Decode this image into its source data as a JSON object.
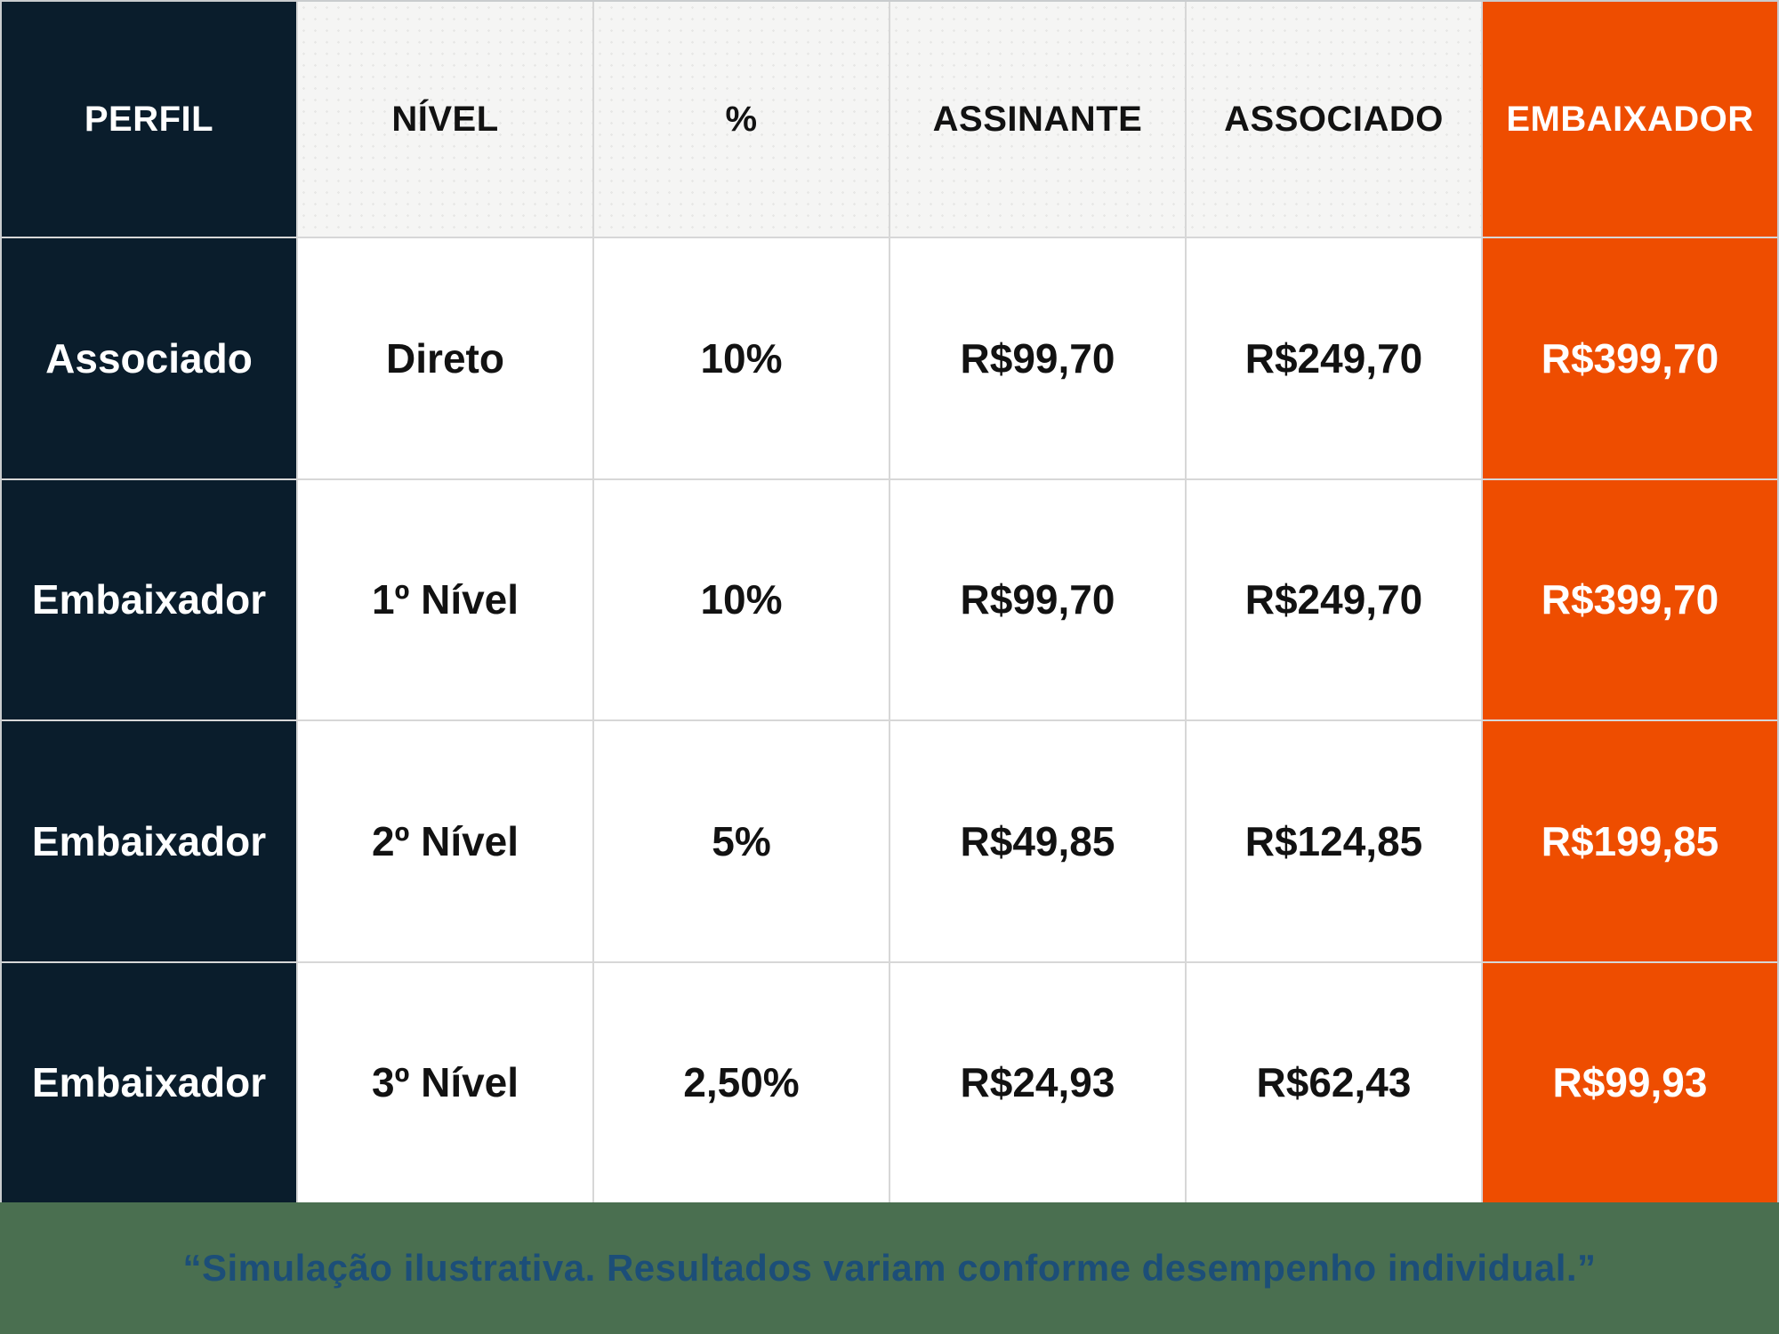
{
  "table": {
    "columns": [
      {
        "key": "perfil",
        "label": "PERFIL",
        "variant": "dark"
      },
      {
        "key": "nivel",
        "label": "NÍVEL",
        "variant": "light"
      },
      {
        "key": "pct",
        "label": "%",
        "variant": "light"
      },
      {
        "key": "assinante",
        "label": "ASSINANTE",
        "variant": "light"
      },
      {
        "key": "associado",
        "label": "ASSOCIADO",
        "variant": "light"
      },
      {
        "key": "embaixador",
        "label": "EMBAIXADOR",
        "variant": "orange"
      }
    ],
    "rows": [
      {
        "perfil": "Associado",
        "nivel": "Direto",
        "pct": "10%",
        "assinante": "R$99,70",
        "associado": "R$249,70",
        "embaixador": "R$399,70"
      },
      {
        "perfil": "Embaixador",
        "nivel": "1º Nível",
        "pct": "10%",
        "assinante": "R$99,70",
        "associado": "R$249,70",
        "embaixador": "R$399,70"
      },
      {
        "perfil": "Embaixador",
        "nivel": "2º Nível",
        "pct": "5%",
        "assinante": "R$49,85",
        "associado": "R$124,85",
        "embaixador": "R$199,85"
      },
      {
        "perfil": "Embaixador",
        "nivel": "3º Nível",
        "pct": "2,50%",
        "assinante": "R$24,93",
        "associado": "R$62,43",
        "embaixador": "R$99,93"
      }
    ]
  },
  "footer": {
    "disclaimer": "“Simulação ilustrativa. Resultados variam conforme desempenho individual.”"
  },
  "colors": {
    "navy": "#0a1d2c",
    "orange": "#ee4d00",
    "header_light_bg": "#f5f5f4",
    "cell_white_bg": "#ffffff",
    "gridline": "#d7d7d7",
    "footer_bg": "#4a6f50",
    "footer_text": "#1c4e78",
    "text_dark": "#121212",
    "text_light": "#ffffff"
  },
  "chart_data": {
    "type": "table",
    "title": "",
    "columns": [
      "PERFIL",
      "NÍVEL",
      "%",
      "ASSINANTE",
      "ASSOCIADO",
      "EMBAIXADOR"
    ],
    "rows": [
      [
        "Associado",
        "Direto",
        "10%",
        "R$99,70",
        "R$249,70",
        "R$399,70"
      ],
      [
        "Embaixador",
        "1º Nível",
        "10%",
        "R$99,70",
        "R$249,70",
        "R$399,70"
      ],
      [
        "Embaixador",
        "2º Nível",
        "5%",
        "R$49,85",
        "R$124,85",
        "R$199,85"
      ],
      [
        "Embaixador",
        "3º Nível",
        "2,50%",
        "R$24,93",
        "R$62,43",
        "R$99,93"
      ]
    ],
    "annotations": [
      "“Simulação ilustrativa. Resultados variam conforme desempenho individual.”"
    ],
    "layout_hints": {
      "first_column_style": "dark-navy, white bold text",
      "last_column_style": "orange, white bold text",
      "header_row_style": "light gray with halftone dots, black bold text",
      "grid": "on"
    }
  }
}
